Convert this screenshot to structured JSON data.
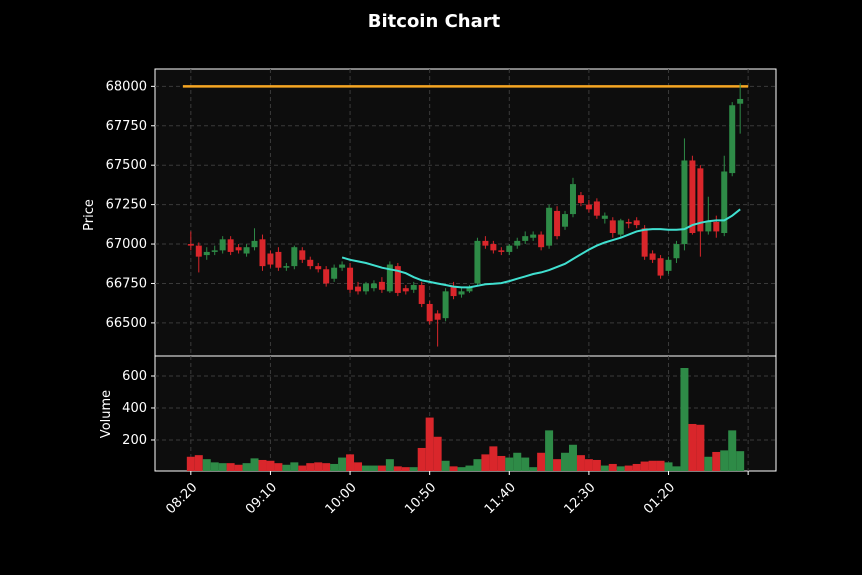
{
  "chart_data": {
    "type": "candlestick",
    "title": "Bitcoin Chart",
    "ylabel": "Price",
    "xlim": [
      -4.5,
      73.5
    ],
    "x_tick_values": [
      0,
      10,
      20,
      30,
      40,
      50,
      60,
      70
    ],
    "x_tick_labels": [
      "08:20",
      "09:10",
      "10:00",
      "10:50",
      "11:40",
      "12:30",
      "01:20",
      null
    ],
    "ylim": [
      66290,
      68110
    ],
    "yticks": [
      66500,
      66750,
      67000,
      67250,
      67500,
      67750,
      68000
    ],
    "grid": true,
    "up_color": "#2e8b47",
    "down_color": "#d9262b",
    "open": [
      67000,
      66990,
      66930,
      66950,
      66960,
      67030,
      66980,
      66940,
      66980,
      67030,
      66940,
      66950,
      66850,
      66860,
      66960,
      66900,
      66860,
      66840,
      66780,
      66850,
      66850,
      66730,
      66700,
      66720,
      66760,
      66700,
      66860,
      66720,
      66710,
      66740,
      66620,
      66560,
      66530,
      66730,
      66680,
      66700,
      66750,
      67020,
      67000,
      66960,
      66950,
      66990,
      67020,
      67040,
      67060,
      66990,
      67210,
      67110,
      67190,
      67310,
      67250,
      67270,
      67160,
      67150,
      67060,
      67140,
      67150,
      67100,
      66940,
      66910,
      66830,
      66910,
      67000,
      67530,
      67480,
      67080,
      67140,
      67070,
      67450,
      67890
    ],
    "high": [
      67080,
      67010,
      66980,
      66990,
      67050,
      67050,
      67000,
      67000,
      67100,
      67060,
      66960,
      66980,
      66880,
      66990,
      66980,
      66920,
      66880,
      66860,
      66870,
      66890,
      66880,
      66760,
      66760,
      66770,
      66790,
      66890,
      66880,
      66740,
      66760,
      66760,
      66640,
      66580,
      66720,
      66760,
      66720,
      66740,
      67040,
      67050,
      67020,
      66980,
      67000,
      67040,
      67080,
      67080,
      67080,
      67250,
      67240,
      67210,
      67420,
      67330,
      67280,
      67290,
      67200,
      67170,
      67160,
      67160,
      67170,
      67120,
      66960,
      66930,
      66920,
      67020,
      67670,
      67560,
      67500,
      67300,
      67180,
      67560,
      67900,
      68020
    ],
    "low": [
      66960,
      66820,
      66900,
      66930,
      66940,
      66930,
      66940,
      66920,
      66960,
      66830,
      66850,
      66830,
      66830,
      66840,
      66880,
      66840,
      66820,
      66730,
      66760,
      66830,
      66690,
      66680,
      66680,
      66700,
      66690,
      66690,
      66670,
      66680,
      66690,
      66600,
      66490,
      66350,
      66510,
      66650,
      66660,
      66690,
      66740,
      66970,
      66940,
      66930,
      66930,
      66970,
      67000,
      67020,
      66960,
      66970,
      67030,
      67090,
      67170,
      67240,
      67200,
      67160,
      67130,
      67040,
      67040,
      67100,
      67100,
      66900,
      66880,
      66780,
      66810,
      66880,
      66960,
      67060,
      66920,
      67060,
      67040,
      67050,
      67430,
      67700
    ],
    "close": [
      66990,
      66920,
      66950,
      66960,
      67030,
      66950,
      66960,
      66980,
      67020,
      66860,
      66870,
      66850,
      66860,
      66980,
      66900,
      66860,
      66840,
      66750,
      66850,
      66870,
      66710,
      66700,
      66750,
      66750,
      66710,
      66870,
      66690,
      66700,
      66740,
      66620,
      66510,
      66520,
      66700,
      66670,
      66700,
      66730,
      67020,
      66990,
      66960,
      66950,
      66990,
      67020,
      67050,
      67060,
      66980,
      67230,
      67050,
      67190,
      67380,
      67260,
      67220,
      67180,
      67180,
      67070,
      67150,
      67130,
      67120,
      66920,
      66900,
      66800,
      66900,
      67000,
      67530,
      67070,
      67080,
      67140,
      67080,
      67460,
      67880,
      67920
    ],
    "moving_average": {
      "color": "#40e0d0",
      "values": [
        null,
        null,
        null,
        null,
        null,
        null,
        null,
        null,
        null,
        null,
        null,
        null,
        null,
        null,
        null,
        null,
        null,
        null,
        null,
        66915,
        66900,
        66890,
        66880,
        66865,
        66850,
        66840,
        66830,
        66815,
        66790,
        66770,
        66760,
        66750,
        66740,
        66730,
        66725,
        66725,
        66735,
        66745,
        66748,
        66752,
        66765,
        66780,
        66795,
        66810,
        66820,
        66835,
        66855,
        66875,
        66905,
        66935,
        66965,
        66990,
        67010,
        67025,
        67040,
        67060,
        67080,
        67090,
        67095,
        67095,
        67090,
        67090,
        67095,
        67120,
        67135,
        67145,
        67150,
        67150,
        67180,
        67220
      ]
    },
    "hline": {
      "value": 68000,
      "color": "#f5a623"
    },
    "volume": {
      "ylabel": "Volume",
      "ylim": [
        6,
        725
      ],
      "yticks": [
        200,
        400,
        600
      ],
      "values": [
        95,
        105,
        80,
        60,
        55,
        55,
        45,
        55,
        85,
        75,
        70,
        55,
        45,
        60,
        40,
        55,
        60,
        55,
        50,
        90,
        110,
        60,
        40,
        40,
        40,
        80,
        35,
        30,
        30,
        150,
        340,
        220,
        70,
        35,
        30,
        40,
        80,
        110,
        160,
        100,
        90,
        120,
        90,
        30,
        120,
        260,
        80,
        120,
        170,
        105,
        80,
        75,
        40,
        50,
        35,
        40,
        50,
        65,
        70,
        70,
        60,
        35,
        650,
        300,
        295,
        95,
        125,
        135,
        260,
        130
      ]
    }
  }
}
